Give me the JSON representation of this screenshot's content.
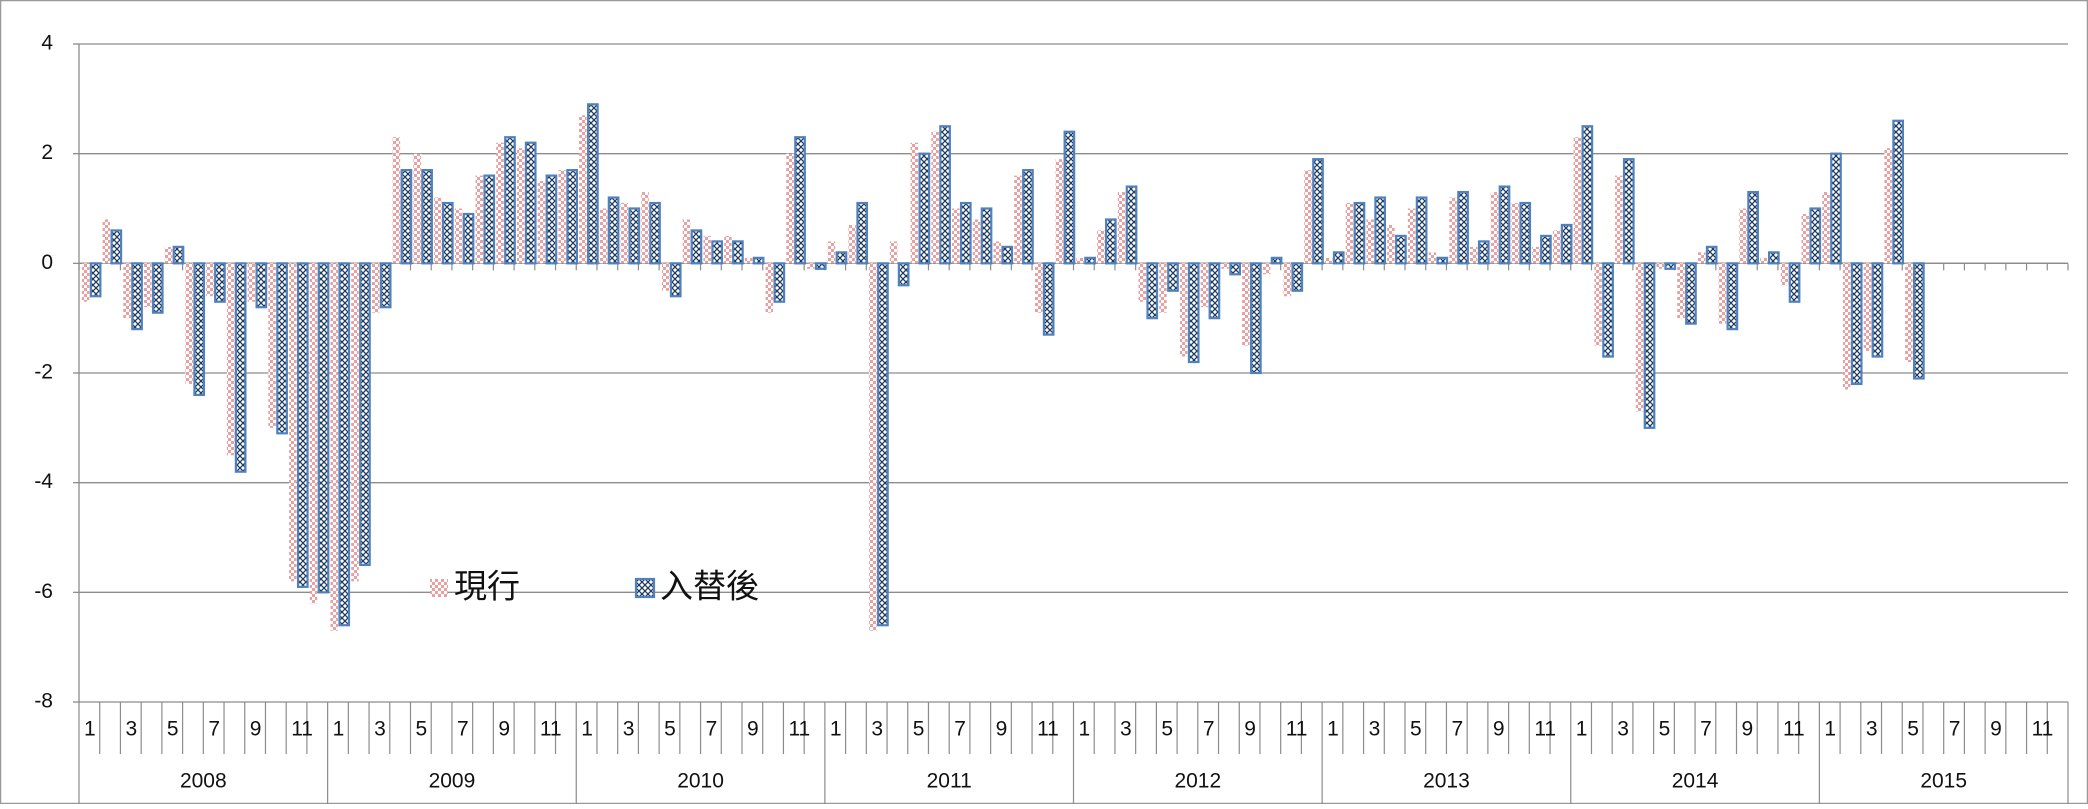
{
  "chart_data": {
    "type": "bar",
    "categories": [
      "1",
      null,
      "3",
      null,
      "5",
      null,
      "7",
      null,
      "9",
      null,
      "11",
      null,
      "1",
      null,
      "3",
      null,
      "5",
      null,
      "7",
      null,
      "9",
      null,
      "11",
      null,
      "1",
      null,
      "3",
      null,
      "5",
      null,
      "7",
      null,
      "9",
      null,
      "11",
      null,
      "1",
      null,
      "3",
      null,
      "5",
      null,
      "7",
      null,
      "9",
      null,
      "11",
      null,
      "1",
      null,
      "3",
      null,
      "5",
      null,
      "7",
      null,
      "9",
      null,
      "11",
      null,
      "1",
      null,
      "3",
      null,
      "5",
      null,
      "7",
      null,
      "9",
      null,
      "11",
      null,
      "1",
      null,
      "3",
      null,
      "5",
      null,
      "7",
      null,
      "9",
      null,
      "11",
      null,
      "1",
      null,
      "3",
      null,
      "5",
      null,
      "7",
      null,
      "9",
      null,
      "11",
      null
    ],
    "x_groups": [
      "2008",
      "2009",
      "2010",
      "2011",
      "2012",
      "2013",
      "2014",
      "2015"
    ],
    "series": [
      {
        "name": "現行",
        "color": "#e8a0a0",
        "values": [
          -0.7,
          0.8,
          -1.0,
          -0.8,
          0.3,
          -2.2,
          -0.6,
          -3.5,
          -0.7,
          -3.0,
          -5.8,
          -6.2,
          -6.7,
          -5.8,
          -0.9,
          2.3,
          2.0,
          1.2,
          1.0,
          1.6,
          2.2,
          2.1,
          1.5,
          1.7,
          2.7,
          1.0,
          1.1,
          1.3,
          -0.5,
          0.8,
          0.5,
          0.5,
          0.1,
          -0.9,
          2.0,
          -0.1,
          0.4,
          0.7,
          -6.7,
          0.4,
          2.2,
          2.4,
          1.0,
          0.8,
          0.4,
          1.6,
          -0.9,
          1.9,
          0.1,
          0.6,
          1.3,
          -0.7,
          -0.9,
          -1.7,
          -0.8,
          -0.1,
          -1.5,
          -0.2,
          -0.6,
          1.7,
          0.1,
          1.1,
          0.8,
          0.7,
          1.0,
          0.2,
          1.2,
          0.3,
          1.3,
          1.1,
          0.3,
          0.6,
          2.3,
          -1.5,
          1.6,
          -2.7,
          -0.1,
          -1.0,
          0.2,
          -1.1,
          1.0,
          0.1,
          -0.4,
          0.9,
          1.3,
          -2.3,
          -1.6,
          2.1,
          -1.8,
          null,
          null,
          null,
          null,
          null,
          null,
          null
        ]
      },
      {
        "name": "入替後",
        "color": "#4f81bd",
        "values": [
          -0.6,
          0.6,
          -1.2,
          -0.9,
          0.3,
          -2.4,
          -0.7,
          -3.8,
          -0.8,
          -3.1,
          -5.9,
          -6.0,
          -6.6,
          -5.5,
          -0.8,
          1.7,
          1.7,
          1.1,
          0.9,
          1.6,
          2.3,
          2.2,
          1.6,
          1.7,
          2.9,
          1.2,
          1.0,
          1.1,
          -0.6,
          0.6,
          0.4,
          0.4,
          0.1,
          -0.7,
          2.3,
          -0.1,
          0.2,
          1.1,
          -6.6,
          -0.4,
          2.0,
          2.5,
          1.1,
          1.0,
          0.3,
          1.7,
          -1.3,
          2.4,
          0.1,
          0.8,
          1.4,
          -1.0,
          -0.5,
          -1.8,
          -1.0,
          -0.2,
          -2.0,
          0.1,
          -0.5,
          1.9,
          0.2,
          1.1,
          1.2,
          0.5,
          1.2,
          0.1,
          1.3,
          0.4,
          1.4,
          1.1,
          0.5,
          0.7,
          2.5,
          -1.7,
          1.9,
          -3.0,
          -0.1,
          -1.1,
          0.3,
          -1.2,
          1.3,
          0.2,
          -0.7,
          1.0,
          2.0,
          -2.2,
          -1.7,
          2.6,
          -2.1,
          null,
          null,
          null,
          null,
          null,
          null,
          null
        ]
      }
    ],
    "ylim": [
      -8,
      4
    ],
    "yticks": [
      -8,
      -6,
      -4,
      -2,
      0,
      2,
      4
    ],
    "grid": true
  }
}
